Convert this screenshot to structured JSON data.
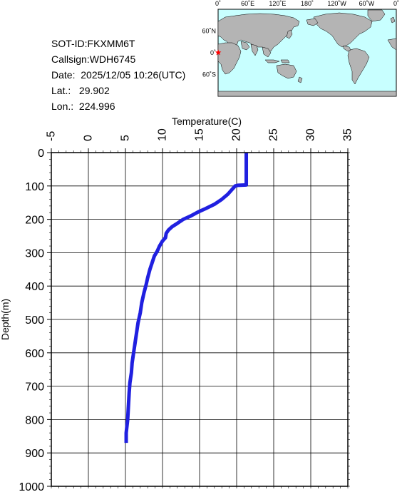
{
  "info": {
    "sot_id": "SOT-ID:FKXMM6T",
    "callsign": "Callsign:WDH6745",
    "date": "Date:  2025/12/05 10:26(UTC)",
    "lat": "Lat.:   29.902",
    "lon": "Lon.:  224.996"
  },
  "map": {
    "top_labels": [
      "0˚",
      "60˚E",
      "120˚E",
      "180˚",
      "120˚W",
      "60˚W",
      "0˚"
    ],
    "left_labels": [
      "60˚N",
      "0˚",
      "60˚S"
    ],
    "ocean_color": "#c8ffff",
    "land_color": "#b4b4b4",
    "marker_color": "#ff0000",
    "marker_icon": "star-icon"
  },
  "chart_data": {
    "type": "line",
    "xlabel": "Temperature(C)",
    "ylabel": "Depth(m)",
    "xlim": [
      -5,
      35
    ],
    "ylim": [
      0,
      1000
    ],
    "y_inverted": true,
    "x_axis_position": "top",
    "grid": true,
    "x_ticks": [
      "-5",
      "0",
      "5",
      "10",
      "15",
      "20",
      "25",
      "30",
      "35"
    ],
    "y_ticks": [
      "0",
      "100",
      "200",
      "300",
      "400",
      "500",
      "600",
      "700",
      "800",
      "900",
      "1000"
    ],
    "line_color": "#2020e0",
    "series": [
      {
        "points": [
          [
            21.3,
            0
          ],
          [
            21.3,
            20
          ],
          [
            21.3,
            40
          ],
          [
            21.3,
            60
          ],
          [
            21.3,
            80
          ],
          [
            21.3,
            97
          ],
          [
            20.2,
            98
          ],
          [
            19.8,
            100
          ],
          [
            19.4,
            110
          ],
          [
            18.8,
            125
          ],
          [
            18.0,
            140
          ],
          [
            17.0,
            155
          ],
          [
            15.8,
            168
          ],
          [
            14.8,
            178
          ],
          [
            13.8,
            190
          ],
          [
            12.8,
            200
          ],
          [
            12.0,
            212
          ],
          [
            11.3,
            222
          ],
          [
            10.8,
            232
          ],
          [
            10.5,
            242
          ],
          [
            10.4,
            255
          ],
          [
            10.0,
            265
          ],
          [
            9.6,
            280
          ],
          [
            9.3,
            295
          ],
          [
            8.9,
            310
          ],
          [
            8.6,
            330
          ],
          [
            8.3,
            350
          ],
          [
            8.0,
            375
          ],
          [
            7.8,
            395
          ],
          [
            7.5,
            420
          ],
          [
            7.2,
            450
          ],
          [
            7.0,
            480
          ],
          [
            6.7,
            510
          ],
          [
            6.5,
            540
          ],
          [
            6.3,
            570
          ],
          [
            6.1,
            600
          ],
          [
            5.9,
            630
          ],
          [
            5.8,
            660
          ],
          [
            5.6,
            690
          ],
          [
            5.5,
            720
          ],
          [
            5.4,
            760
          ],
          [
            5.3,
            800
          ],
          [
            5.1,
            840
          ],
          [
            5.1,
            870
          ]
        ]
      }
    ]
  }
}
